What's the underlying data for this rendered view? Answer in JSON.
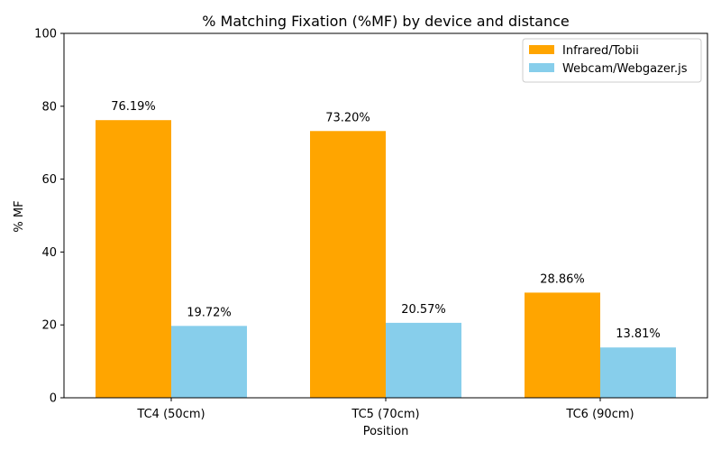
{
  "chart_data": {
    "type": "bar",
    "title": "% Matching Fixation (%MF) by device and distance",
    "xlabel": "Position",
    "ylabel": "% MF",
    "categories": [
      "TC4 (50cm)",
      "TC5 (70cm)",
      "TC6 (90cm)"
    ],
    "series": [
      {
        "name": "Infrared/Tobii",
        "color": "#FFA500",
        "values": [
          76.19,
          73.2,
          28.86
        ],
        "labels": [
          "76.19%",
          "73.20%",
          "28.86%"
        ]
      },
      {
        "name": "Webcam/Webgazer.js",
        "color": "#87CEEB",
        "values": [
          19.72,
          20.57,
          13.81
        ],
        "labels": [
          "19.72%",
          "20.57%",
          "13.81%"
        ]
      }
    ],
    "ylim": [
      0,
      100
    ],
    "yticks": [
      "0",
      "20",
      "40",
      "60",
      "80",
      "100"
    ],
    "grid": false,
    "legend_position": "top-right"
  }
}
